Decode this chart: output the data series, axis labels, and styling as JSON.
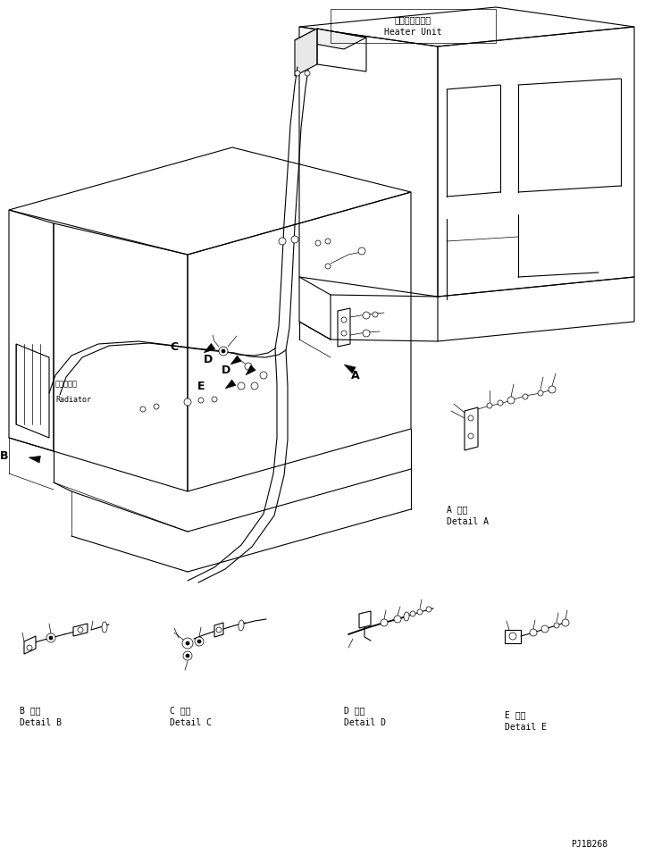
{
  "figure_width": 7.22,
  "figure_height": 9.57,
  "dpi": 100,
  "bg_color": "#ffffff",
  "line_color": "#000000",
  "lw": 0.8,
  "tlw": 0.5,
  "heater_label_jp": "ヒータユニット",
  "heater_label_en": "Heater Unit",
  "radiator_label_jp": "ラジエータ",
  "radiator_label_en": "Radiator",
  "detail_A_jp": "A 詳細",
  "detail_A_en": "Detail A",
  "detail_B_jp": "B 詳細",
  "detail_B_en": "Detail B",
  "detail_C_jp": "C 詳細",
  "detail_C_en": "Detail C",
  "detail_D_jp": "D 詳細",
  "detail_D_en": "Detail D",
  "detail_E_jp": "E 詳細",
  "detail_E_en": "Detail E",
  "part_number": "PJ1B268",
  "fs_label": 7,
  "fs_callout": 9,
  "fs_detail": 6.5,
  "fs_pn": 7
}
